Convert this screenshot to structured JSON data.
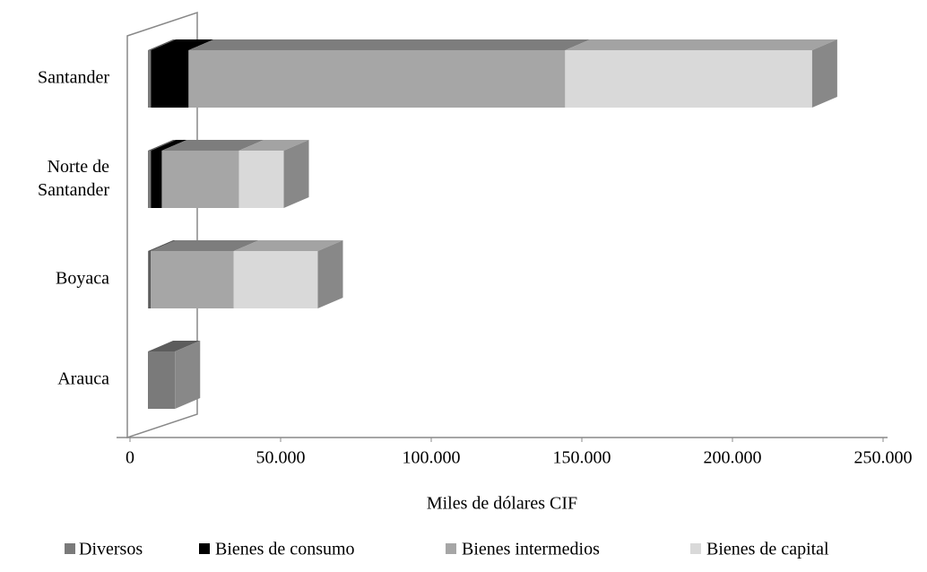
{
  "chart_data": {
    "type": "bar3d_stacked_horizontal",
    "categories": [
      "Santander",
      "Norte de Santander",
      "Boyaca",
      "Arauca"
    ],
    "series": [
      {
        "name": "Diversos",
        "color": "#7a7a7a",
        "values": [
          1000,
          1000,
          500,
          9000
        ]
      },
      {
        "name": "Bienes de consumo",
        "color": "#000000",
        "values": [
          12500,
          3600,
          300,
          0
        ]
      },
      {
        "name": "Bienes intermedios",
        "color": "#a6a6a6",
        "values": [
          125000,
          25600,
          27700,
          0
        ]
      },
      {
        "name": "Bienes de capital",
        "color": "#d9d9d9",
        "values": [
          82000,
          14900,
          27900,
          0
        ]
      }
    ],
    "xlim": [
      0,
      250000
    ],
    "xticks": [
      0,
      {
        "value": 50000,
        "label": "50.000"
      },
      {
        "value": 100000,
        "label": "100.000"
      },
      {
        "value": 150000,
        "label": "150.000"
      },
      {
        "value": 200000,
        "label": "200.000"
      },
      {
        "value": 250000,
        "label": "250.000"
      }
    ],
    "xlabel": "Miles de dólares CIF",
    "legend": "bottom"
  }
}
